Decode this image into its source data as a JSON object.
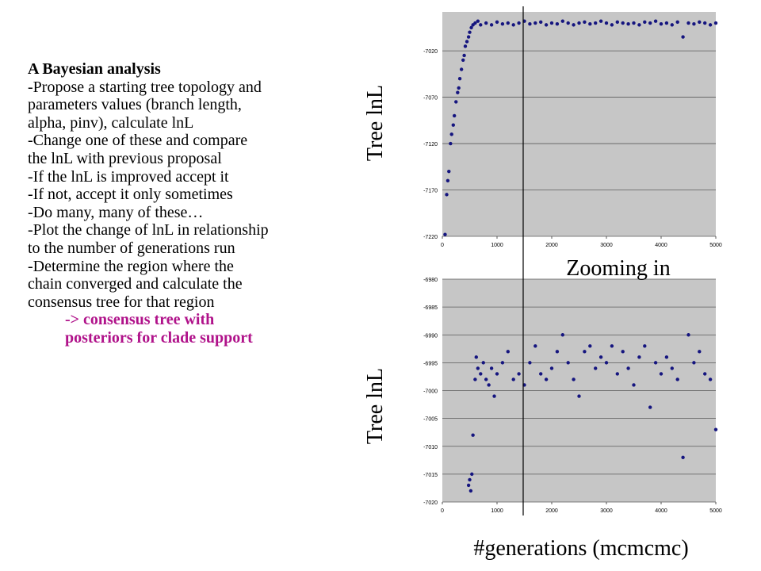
{
  "text": {
    "heading": "A Bayesian analysis",
    "lines": [
      "-Propose a starting tree topology and",
      "parameters values (branch length,",
      "alpha, pinv), calculate lnL",
      "-Change one of these and compare",
      "the lnL with previous proposal",
      "-If the lnL is improved accept it",
      "-If not, accept it only sometimes",
      "-Do many, many of these…",
      "-Plot the change of lnL in relationship",
      "to the number of generations run",
      "-Determine the region where the",
      "chain converged and calculate the",
      "consensus tree for that region"
    ],
    "highlight": [
      "-> consensus tree with",
      "posteriors for clade support"
    ]
  },
  "chart_data": [
    {
      "type": "scatter",
      "ylabel": "Tree lnL",
      "color": "#15157f",
      "grid": true,
      "xlim": [
        0,
        5000
      ],
      "xticks": [
        0,
        1000,
        2000,
        3000,
        4000,
        5000
      ],
      "ylim": [
        -7220,
        -6978
      ],
      "yticks": [
        -7220,
        -7170,
        -7120,
        -7070,
        -7020
      ],
      "x": [
        50,
        80,
        100,
        120,
        150,
        170,
        200,
        220,
        250,
        280,
        300,
        320,
        350,
        380,
        400,
        420,
        450,
        480,
        500,
        530,
        560,
        600,
        650,
        700,
        800,
        900,
        1000,
        1100,
        1200,
        1300,
        1400,
        1500,
        1600,
        1700,
        1800,
        1900,
        2000,
        2100,
        2200,
        2300,
        2400,
        2500,
        2600,
        2700,
        2800,
        2900,
        3000,
        3100,
        3200,
        3300,
        3400,
        3500,
        3600,
        3700,
        3800,
        3900,
        4000,
        4100,
        4200,
        4300,
        4400,
        4500,
        4600,
        4700,
        4800,
        4900,
        5000
      ],
      "values": [
        -7218,
        -7175,
        -7160,
        -7150,
        -7120,
        -7110,
        -7100,
        -7090,
        -7075,
        -7065,
        -7060,
        -7050,
        -7040,
        -7030,
        -7025,
        -7015,
        -7010,
        -7005,
        -7000,
        -6995,
        -6992,
        -6990,
        -6988,
        -6992,
        -6990,
        -6992,
        -6989,
        -6991,
        -6990,
        -6992,
        -6990,
        -6988,
        -6991,
        -6990,
        -6989,
        -6992,
        -6990,
        -6991,
        -6988,
        -6990,
        -6992,
        -6990,
        -6989,
        -6991,
        -6990,
        -6988,
        -6990,
        -6992,
        -6989,
        -6990,
        -6991,
        -6990,
        -6992,
        -6989,
        -6990,
        -6988,
        -6991,
        -6990,
        -6992,
        -6989,
        -7005,
        -6990,
        -6991,
        -6989,
        -6990,
        -6992,
        -6990
      ]
    },
    {
      "type": "scatter",
      "title": "Zooming in",
      "ylabel": "Tree lnL",
      "xlabel": "#generations (mcmcmc)",
      "color": "#15157f",
      "grid": true,
      "xlim": [
        0,
        5000
      ],
      "xticks": [
        0,
        1000,
        2000,
        3000,
        4000,
        5000
      ],
      "ylim": [
        -7020,
        -6980
      ],
      "yticks": [
        -7020,
        -7015,
        -7010,
        -7005,
        -7000,
        -6995,
        -6990,
        -6985,
        -6980
      ],
      "x": [
        480,
        500,
        520,
        540,
        560,
        600,
        620,
        650,
        700,
        750,
        800,
        850,
        900,
        950,
        1000,
        1100,
        1200,
        1300,
        1400,
        1500,
        1600,
        1700,
        1800,
        1900,
        2000,
        2100,
        2200,
        2300,
        2400,
        2500,
        2600,
        2700,
        2800,
        2900,
        3000,
        3100,
        3200,
        3300,
        3400,
        3500,
        3600,
        3700,
        3800,
        3900,
        4000,
        4100,
        4200,
        4300,
        4400,
        4500,
        4600,
        4700,
        4800,
        4900,
        5000
      ],
      "values": [
        -7017,
        -7016,
        -7018,
        -7015,
        -7008,
        -6998,
        -6994,
        -6996,
        -6997,
        -6995,
        -6998,
        -6999,
        -6996,
        -7001,
        -6997,
        -6995,
        -6993,
        -6998,
        -6997,
        -6999,
        -6995,
        -6992,
        -6997,
        -6998,
        -6996,
        -6993,
        -6990,
        -6995,
        -6998,
        -7001,
        -6993,
        -6992,
        -6996,
        -6994,
        -6995,
        -6992,
        -6997,
        -6993,
        -6996,
        -6999,
        -6994,
        -6992,
        -7003,
        -6995,
        -6997,
        -6994,
        -6996,
        -6998,
        -7012,
        -6990,
        -6995,
        -6993,
        -6997,
        -6998,
        -7007
      ]
    }
  ]
}
